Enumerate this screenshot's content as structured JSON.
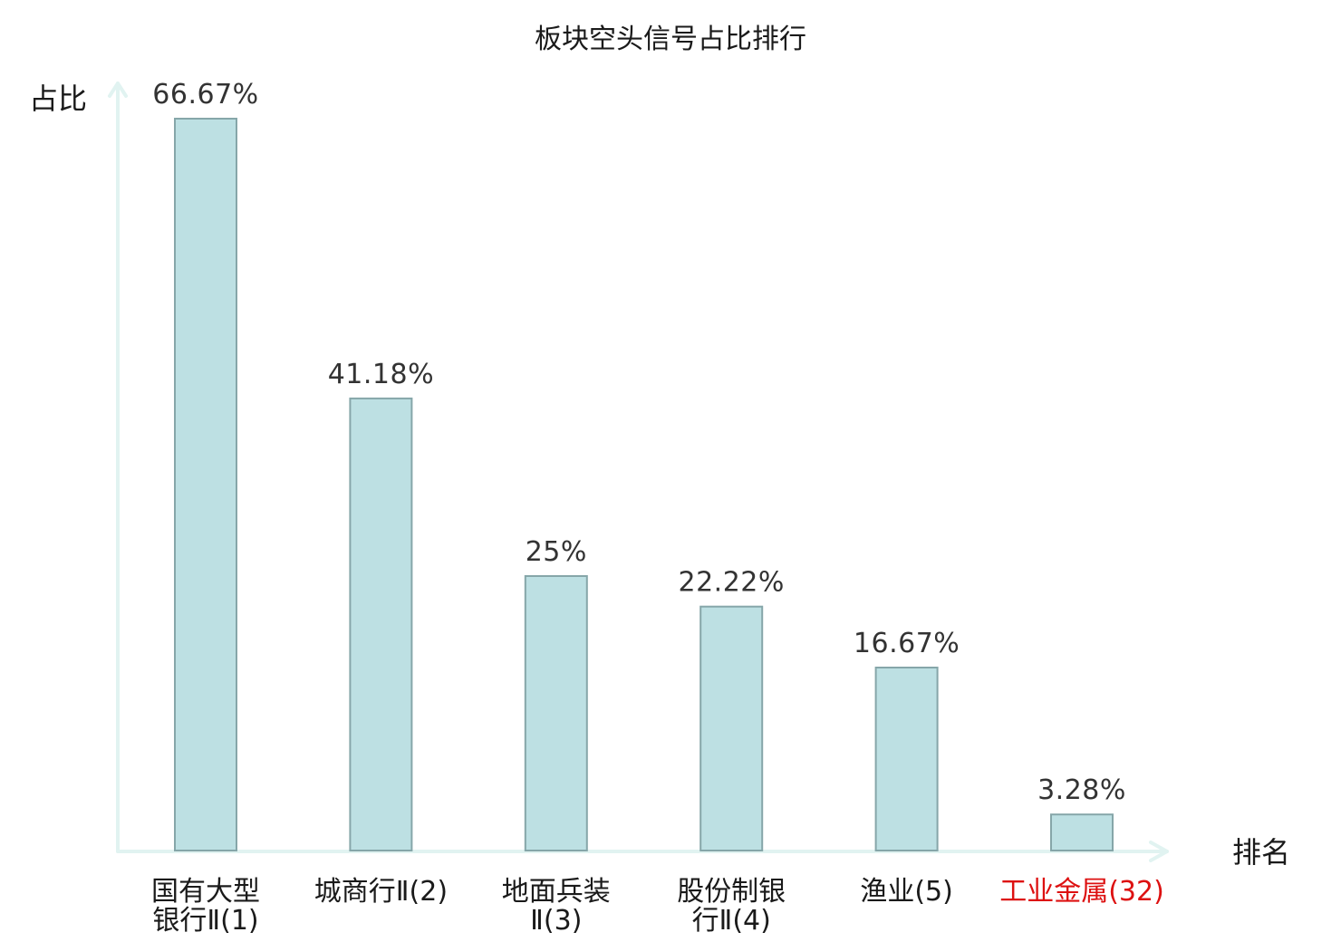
{
  "chart_data": {
    "type": "bar",
    "title": "板块空头信号占比排行",
    "ylabel": "占比",
    "xlabel": "排名",
    "ylim": [
      0,
      70
    ],
    "grid": false,
    "legend": "none",
    "bar_color": "#bde0e3",
    "bar_border_color": "#86a6a9",
    "axis_color": "#e1f3f1",
    "label_color": "#333333",
    "highlight_color": "#dd1111",
    "categories": [
      {
        "lines": [
          "国有大型",
          "银行Ⅱ(1)"
        ],
        "highlight": false
      },
      {
        "lines": [
          "城商行Ⅱ(2)"
        ],
        "highlight": false
      },
      {
        "lines": [
          "地面兵装",
          "Ⅱ(3)"
        ],
        "highlight": false
      },
      {
        "lines": [
          "股份制银",
          "行Ⅱ(4)"
        ],
        "highlight": false
      },
      {
        "lines": [
          "渔业(5)"
        ],
        "highlight": false
      },
      {
        "lines": [
          "工业金属(32)"
        ],
        "highlight": true
      }
    ],
    "values": [
      66.67,
      41.18,
      25,
      22.22,
      16.67,
      3.28
    ],
    "value_labels": [
      "66.67%",
      "41.18%",
      "25%",
      "22.22%",
      "16.67%",
      "3.28%"
    ]
  }
}
